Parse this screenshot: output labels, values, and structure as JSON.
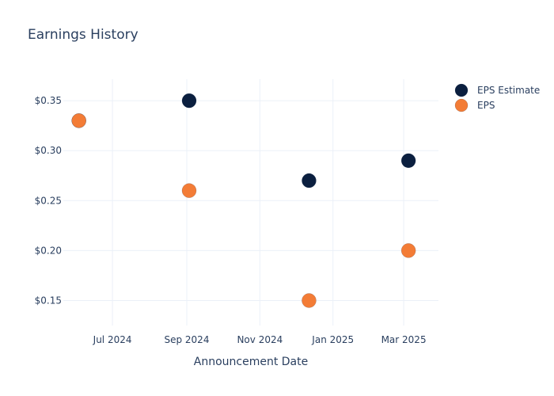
{
  "chart_data": {
    "type": "scatter",
    "title": "Earnings History",
    "xlabel": "Announcement Date",
    "ylabel": "",
    "x_type": "date",
    "xlim": [
      "2024-05-21",
      "2025-03-30"
    ],
    "ylim": [
      0.125,
      0.3715
    ],
    "x_ticks": [
      {
        "date": "2024-07-01",
        "label": "Jul 2024"
      },
      {
        "date": "2024-09-01",
        "label": "Sep 2024"
      },
      {
        "date": "2024-11-01",
        "label": "Nov 2024"
      },
      {
        "date": "2025-01-01",
        "label": "Jan 2025"
      },
      {
        "date": "2025-03-01",
        "label": "Mar 2025"
      }
    ],
    "y_ticks": [
      {
        "value": 0.35,
        "label": "$0.35"
      },
      {
        "value": 0.3,
        "label": "$0.30"
      },
      {
        "value": 0.25,
        "label": "$0.25"
      },
      {
        "value": 0.2,
        "label": "$0.20"
      },
      {
        "value": 0.15,
        "label": "$0.15"
      }
    ],
    "grid": true,
    "legend_position": "top-right",
    "series": [
      {
        "name": "EPS Estimate",
        "color": "#0b1f3f",
        "points": [
          {
            "x": "2024-06-03",
            "y": 0.33
          },
          {
            "x": "2024-09-03",
            "y": 0.35
          },
          {
            "x": "2024-12-12",
            "y": 0.27
          },
          {
            "x": "2025-03-05",
            "y": 0.29
          }
        ]
      },
      {
        "name": "EPS",
        "color": "#f37c36",
        "points": [
          {
            "x": "2024-06-03",
            "y": 0.33
          },
          {
            "x": "2024-09-03",
            "y": 0.26
          },
          {
            "x": "2024-12-12",
            "y": 0.15
          },
          {
            "x": "2025-03-05",
            "y": 0.2
          }
        ]
      }
    ]
  }
}
